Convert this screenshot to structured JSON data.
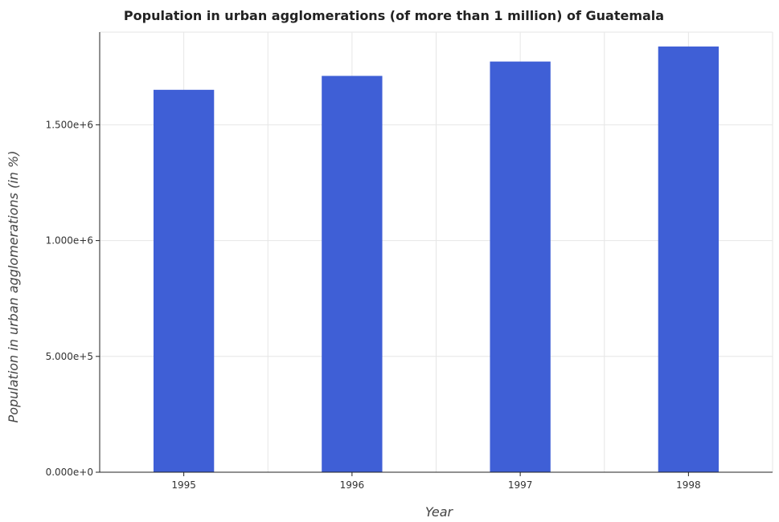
{
  "chart_data": {
    "type": "bar",
    "title": "Population in urban agglomerations (of more than 1 million) of Guatemala",
    "xlabel": "Year",
    "ylabel": "Population in urban agglomerations (in %)",
    "categories": [
      "1995",
      "1996",
      "1997",
      "1998"
    ],
    "values": [
      1651000,
      1711000,
      1773000,
      1838000
    ],
    "ylim": [
      0,
      1900000
    ],
    "yticks": [
      0,
      500000,
      1000000,
      1500000
    ],
    "ytick_labels": [
      "0.000e+0",
      "5.000e+5",
      "1.000e+6",
      "1.500e+6"
    ],
    "bar_color": "#3f5fd6",
    "grid": true
  }
}
